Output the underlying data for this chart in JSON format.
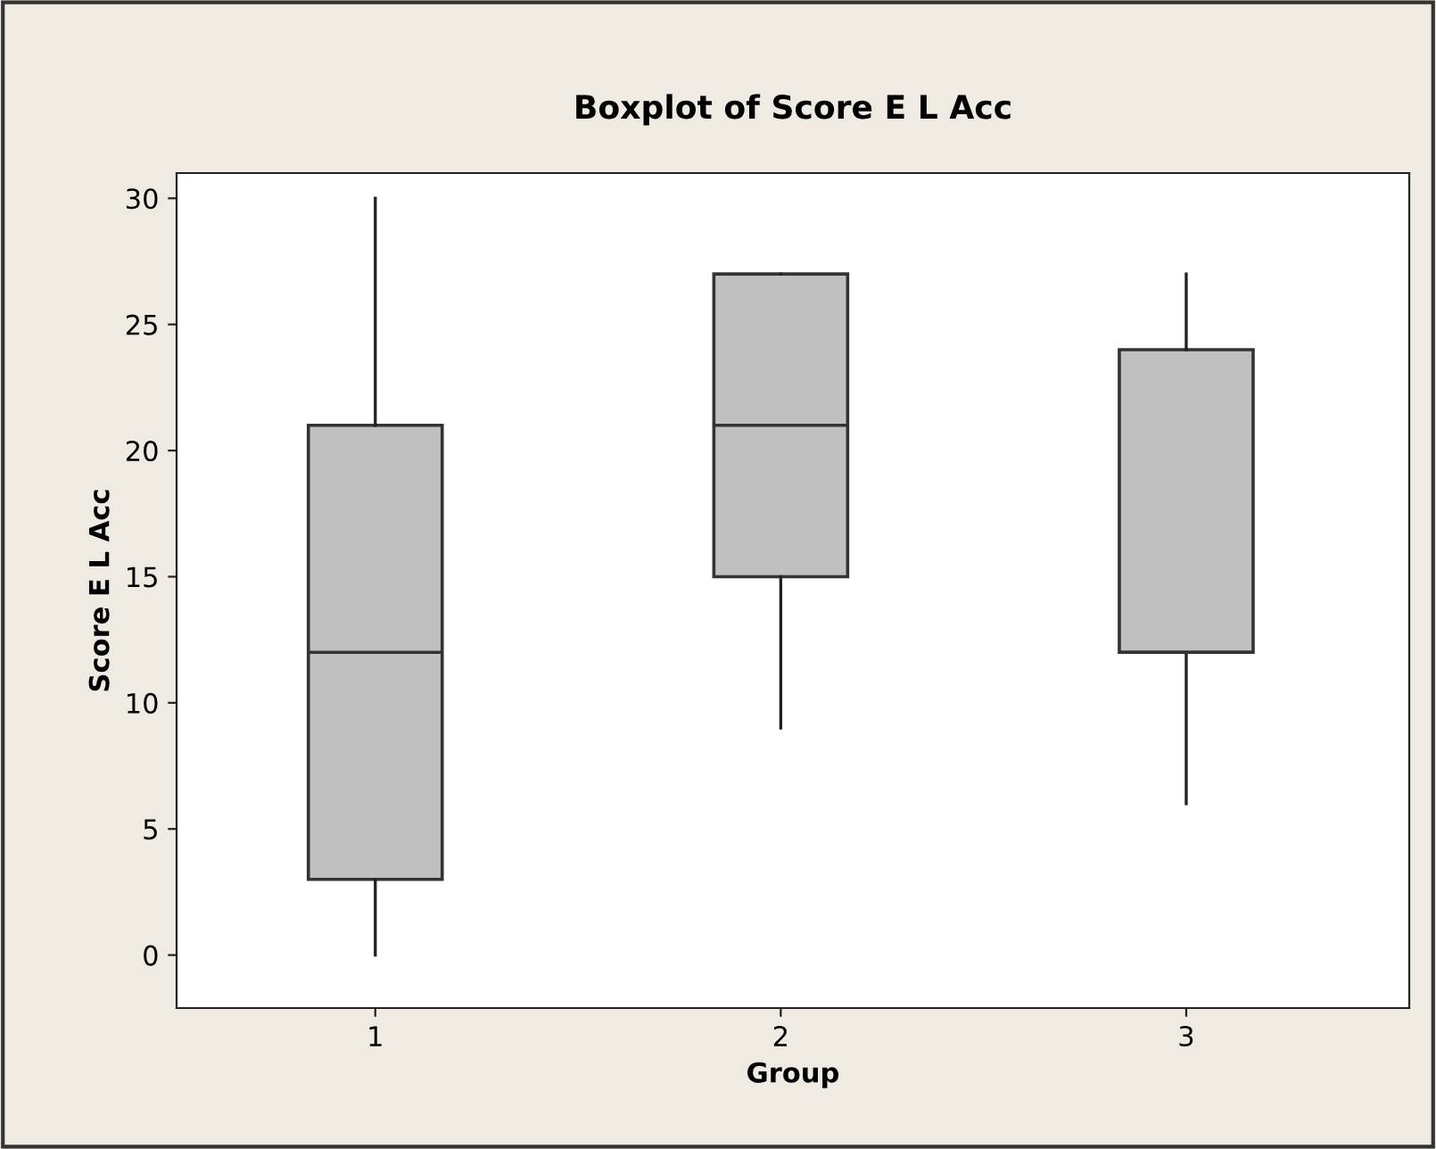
{
  "chart_data": {
    "type": "box",
    "title": "Boxplot of Score E L Acc",
    "xlabel": "Group",
    "ylabel": "Score E L Acc",
    "categories": [
      "1",
      "2",
      "3"
    ],
    "boxes": [
      {
        "low": 0,
        "q1": 3,
        "median": 12,
        "q3": 21,
        "high": 30
      },
      {
        "low": 9,
        "q1": 15,
        "median": 21,
        "q3": 27,
        "high": 27
      },
      {
        "low": 6,
        "q1": 12,
        "median": 12,
        "q3": 24,
        "high": 27
      }
    ],
    "color": "#c0c0c0",
    "ylim": [
      -2.1,
      31
    ],
    "yticks": [
      0,
      5,
      10,
      15,
      20,
      25,
      30
    ],
    "grid": false
  }
}
